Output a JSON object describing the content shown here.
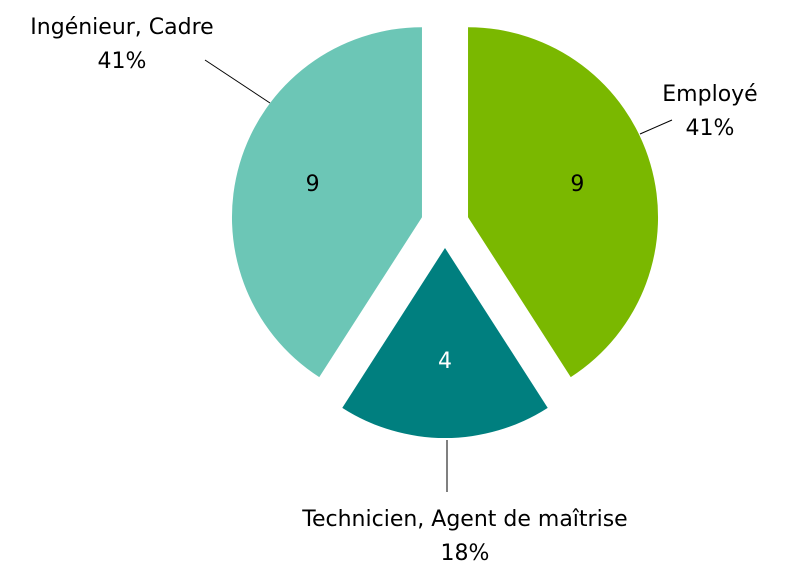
{
  "chart_data": {
    "type": "pie",
    "categories": [
      "Employé",
      "Technicien, Agent de maîtrise",
      "Ingénieur, Cadre"
    ],
    "values": [
      9,
      4,
      9
    ],
    "percent_labels": [
      "41%",
      "18%",
      "41%"
    ],
    "colors": [
      "#7ab800",
      "#007f7f",
      "#6cc6b6"
    ],
    "value_label_colors": [
      "#000000",
      "#ffffff",
      "#000000"
    ],
    "start_angle": 0,
    "direction": "clockwise",
    "exploded": true
  }
}
